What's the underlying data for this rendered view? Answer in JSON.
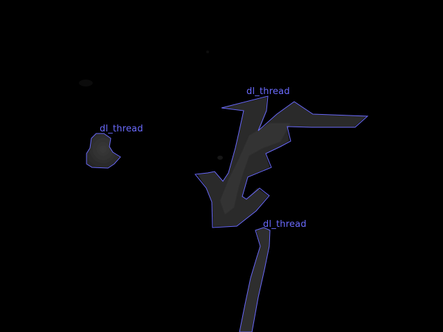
{
  "image": {
    "background_color": "#000000",
    "object_fill_color": "#2a2a2a",
    "object_highlight_color": "#3a3a3a"
  },
  "annotations": [
    {
      "label": "dl_thread",
      "outline_color": "#6b6bff"
    },
    {
      "label": "dl_thread",
      "outline_color": "#6b6bff"
    },
    {
      "label": "dl_thread",
      "outline_color": "#6b6bff"
    }
  ]
}
